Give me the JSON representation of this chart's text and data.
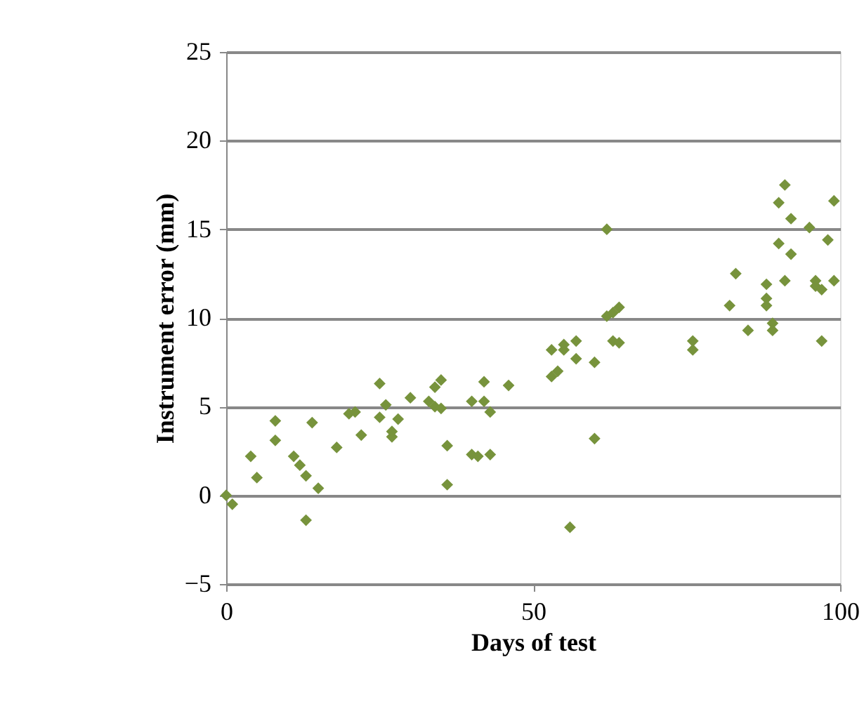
{
  "chart_data": {
    "type": "scatter",
    "xlabel": "Days of test",
    "ylabel": "Instrument  error (mm)",
    "x": [
      0,
      1,
      4,
      5,
      8,
      8,
      11,
      12,
      13,
      13,
      14,
      15,
      18,
      20,
      21,
      22,
      25,
      25,
      26,
      27,
      27,
      28,
      30,
      33,
      34,
      34,
      35,
      35,
      36,
      36,
      40,
      40,
      41,
      42,
      42,
      43,
      43,
      46,
      53,
      53,
      54,
      55,
      55,
      56,
      57,
      57,
      60,
      60,
      62,
      62,
      63,
      63,
      64,
      64,
      76,
      76,
      82,
      83,
      85,
      88,
      88,
      88,
      89,
      89,
      90,
      90,
      91,
      91,
      92,
      92,
      95,
      96,
      96,
      97,
      97,
      98,
      99,
      99
    ],
    "series": [
      {
        "color": "#77933c",
        "values": [
          0,
          -0.5,
          2.2,
          1,
          4.2,
          3.1,
          2.2,
          1.7,
          1.1,
          -1.4,
          4.1,
          0.4,
          2.7,
          4.6,
          4.7,
          3.4,
          4.4,
          6.3,
          5.1,
          3.3,
          3.6,
          4.3,
          5.5,
          5.3,
          6.1,
          5,
          4.9,
          6.5,
          2.8,
          0.6,
          5.3,
          2.3,
          2.2,
          6.4,
          5.3,
          4.7,
          2.3,
          6.2,
          8.2,
          6.7,
          7,
          8.2,
          8.5,
          -1.8,
          7.7,
          8.7,
          3.2,
          7.5,
          10.1,
          15,
          8.7,
          10.3,
          8.6,
          10.6,
          8.7,
          8.2,
          10.7,
          12.5,
          9.3,
          11.9,
          11.1,
          10.7,
          9.7,
          9.3,
          14.2,
          16.5,
          17.5,
          12.1,
          15.6,
          13.6,
          15.1,
          12.1,
          11.8,
          11.6,
          8.7,
          14.4,
          16.6,
          12.1
        ]
      }
    ],
    "xlim": [
      0,
      100
    ],
    "xticks": [
      0,
      50,
      100
    ],
    "ylim": [
      -5,
      25
    ],
    "yticks": [
      -5,
      0,
      5,
      10,
      15,
      20,
      25
    ],
    "grid": "y",
    "marker": "diamond",
    "legend": false
  }
}
